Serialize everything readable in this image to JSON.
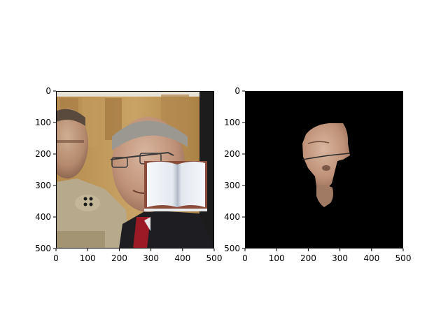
{
  "panels": [
    {
      "name": "original-image",
      "x_ticks": [
        "0",
        "100",
        "200",
        "300",
        "400",
        "500"
      ],
      "y_ticks": [
        "0",
        "100",
        "200",
        "300",
        "400",
        "500"
      ],
      "xlim": [
        0,
        500
      ],
      "ylim": [
        500,
        0
      ],
      "content": "photo of two men in uniform with an open book icon overlay"
    },
    {
      "name": "masked-face-image",
      "x_ticks": [
        "0",
        "100",
        "200",
        "300",
        "400",
        "500"
      ],
      "y_ticks": [
        "0",
        "100",
        "200",
        "300",
        "400",
        "500"
      ],
      "xlim": [
        0,
        500
      ],
      "ylim": [
        500,
        0
      ],
      "content": "black background with segmented face region"
    }
  ],
  "colors": {
    "background": "#ffffff",
    "mask_background": "#000000",
    "axes": "#000000"
  }
}
